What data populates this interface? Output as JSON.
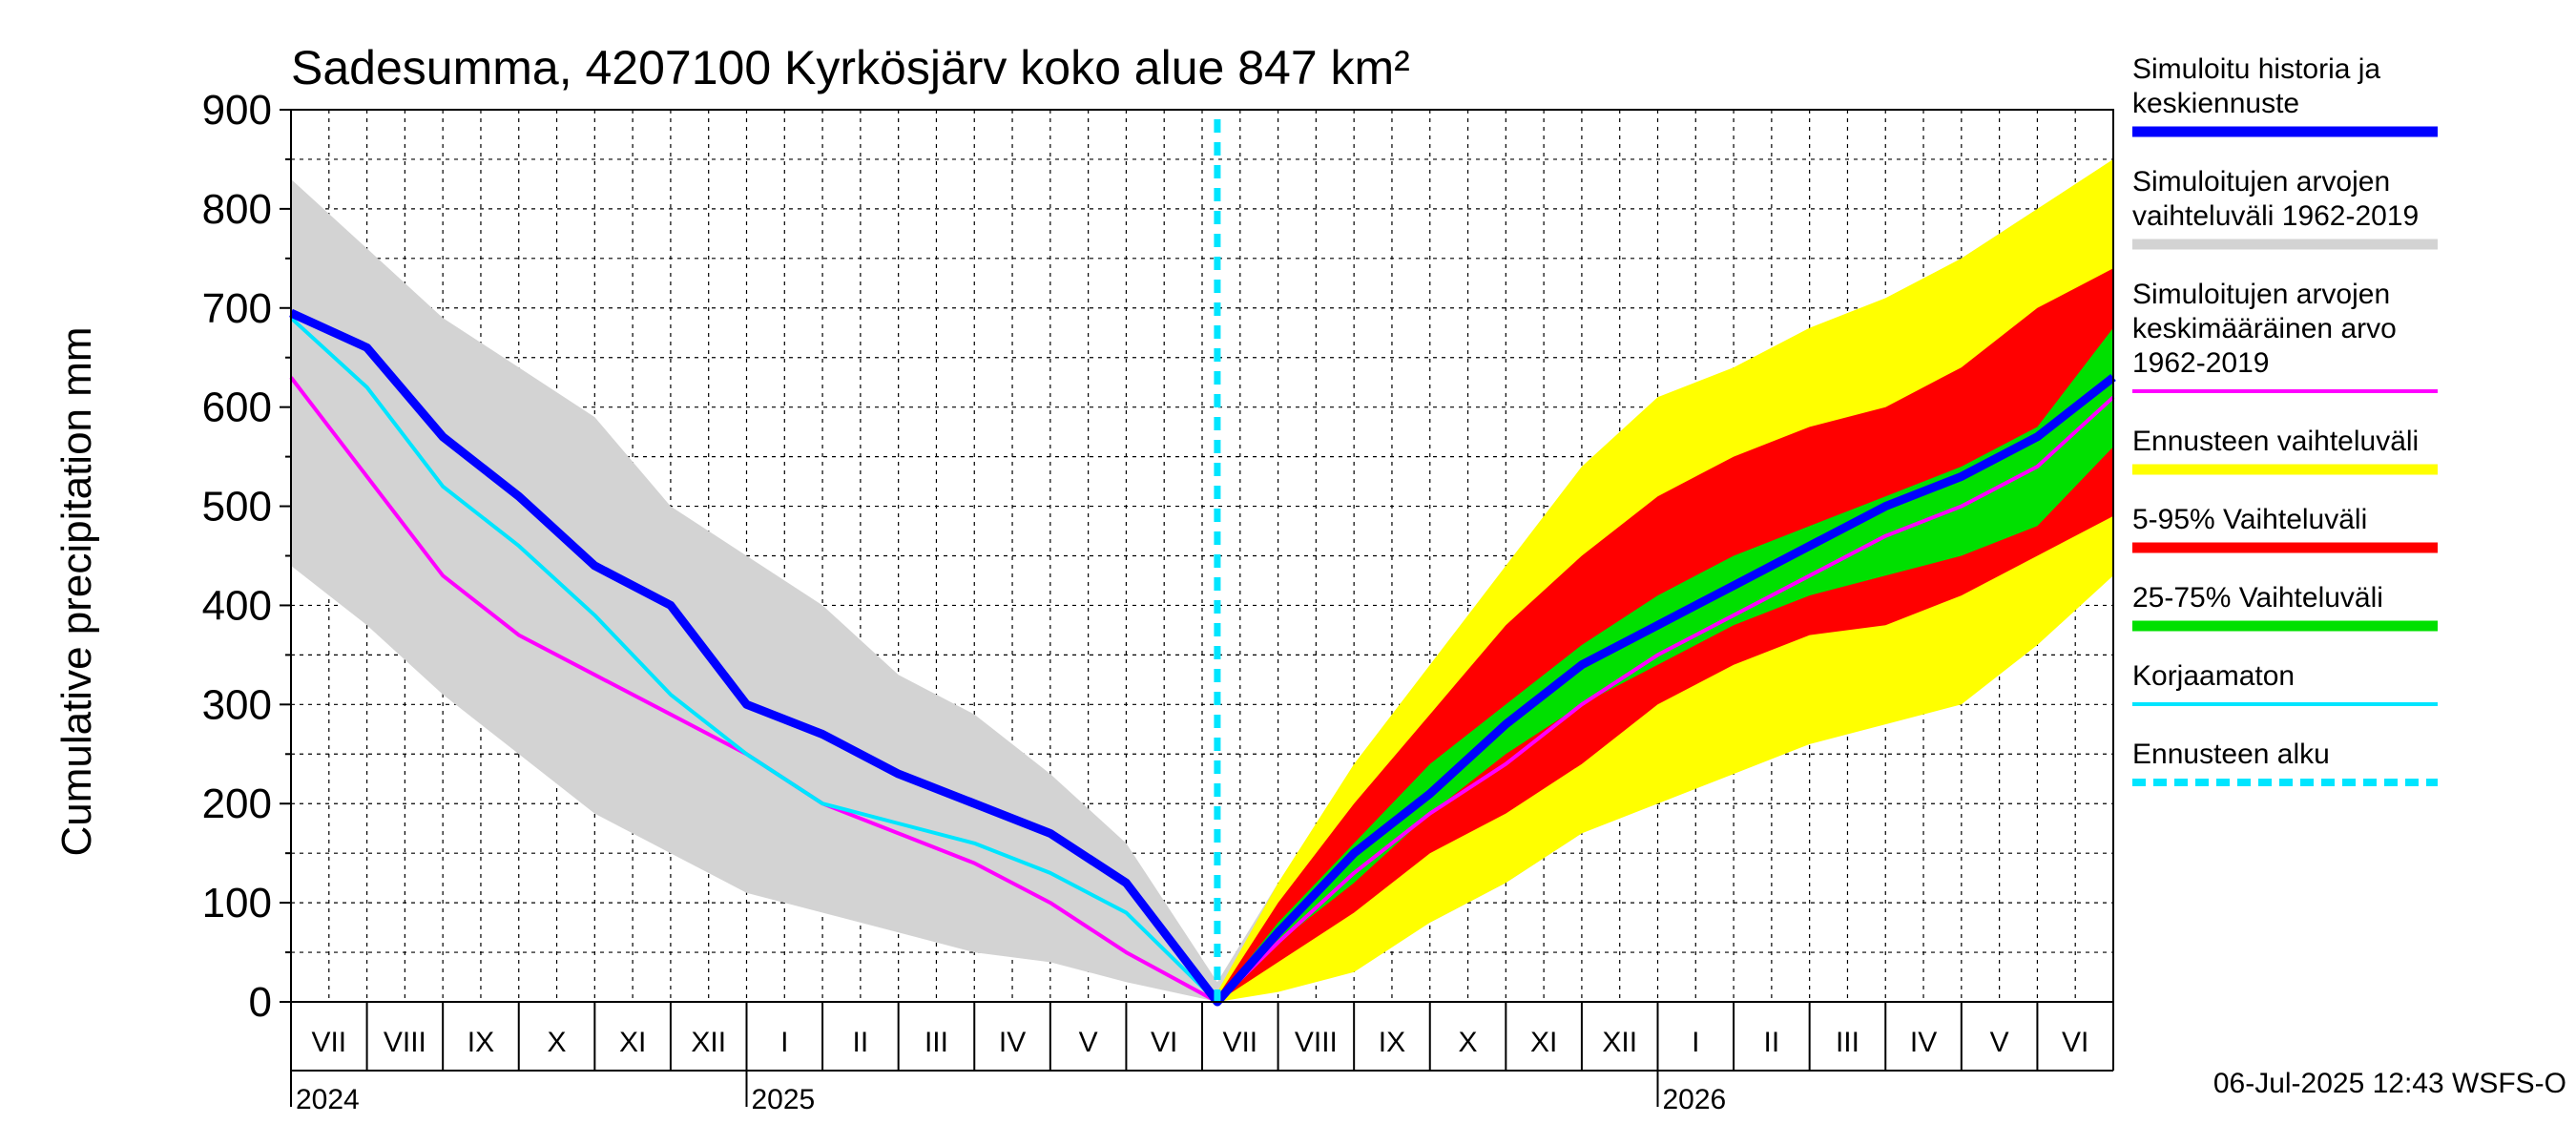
{
  "chart_data": {
    "type": "area",
    "title": "Sadesumma, 4207100 Kyrkösjärv koko alue 847 km²",
    "ylabel": "Cumulative precipitation   mm",
    "xlabel": "",
    "ylim": [
      0,
      900
    ],
    "yticks": [
      0,
      100,
      200,
      300,
      400,
      500,
      600,
      700,
      800,
      900
    ],
    "months": [
      "VII",
      "VIII",
      "IX",
      "X",
      "XI",
      "XII",
      "I",
      "II",
      "III",
      "IV",
      "V",
      "VI",
      "VII",
      "VIII",
      "IX",
      "X",
      "XI",
      "XII",
      "I",
      "II",
      "III",
      "IV",
      "V",
      "VI"
    ],
    "years": [
      {
        "label": "2024",
        "month_index": 0
      },
      {
        "label": "2025",
        "month_index": 6
      },
      {
        "label": "2026",
        "month_index": 18
      }
    ],
    "forecast_start_month": 12.2,
    "series": [
      {
        "name": "Simuloitujen arvojen vaihteluväli 1962-2019",
        "kind": "band",
        "color": "#d3d3d3",
        "x": [
          0,
          1,
          2,
          3,
          4,
          5,
          6,
          7,
          8,
          9,
          10,
          11,
          12.2,
          13,
          14,
          15,
          16,
          17,
          18,
          19,
          20,
          21,
          22,
          23,
          24
        ],
        "upper": [
          830,
          760,
          690,
          640,
          590,
          500,
          450,
          400,
          330,
          290,
          230,
          160,
          20,
          120,
          200,
          270,
          340,
          400,
          480,
          560,
          630,
          690,
          750,
          800,
          830
        ],
        "lower": [
          440,
          380,
          310,
          250,
          190,
          150,
          110,
          90,
          70,
          50,
          40,
          20,
          0,
          15,
          40,
          80,
          120,
          170,
          220,
          250,
          290,
          320,
          350,
          390,
          440
        ]
      },
      {
        "name": "Ennusteen vaihteluväli",
        "kind": "band",
        "color": "#ffff00",
        "x": [
          12.2,
          13,
          14,
          15,
          16,
          17,
          18,
          19,
          20,
          21,
          22,
          23,
          24
        ],
        "upper": [
          10,
          120,
          240,
          340,
          440,
          540,
          610,
          640,
          680,
          710,
          750,
          800,
          850
        ],
        "lower": [
          0,
          10,
          30,
          80,
          120,
          170,
          200,
          230,
          260,
          280,
          300,
          360,
          430
        ]
      },
      {
        "name": "5-95% Vaihteluväli",
        "kind": "band",
        "color": "#ff0000",
        "x": [
          12.2,
          13,
          14,
          15,
          16,
          17,
          18,
          19,
          20,
          21,
          22,
          23,
          24
        ],
        "upper": [
          5,
          100,
          200,
          290,
          380,
          450,
          510,
          550,
          580,
          600,
          640,
          700,
          740
        ],
        "lower": [
          0,
          40,
          90,
          150,
          190,
          240,
          300,
          340,
          370,
          380,
          410,
          450,
          490
        ]
      },
      {
        "name": "25-75% Vaihteluväli",
        "kind": "band",
        "color": "#00e000",
        "x": [
          12.2,
          13,
          14,
          15,
          16,
          17,
          18,
          19,
          20,
          21,
          22,
          23,
          24
        ],
        "upper": [
          3,
          80,
          160,
          240,
          300,
          360,
          410,
          450,
          480,
          510,
          540,
          580,
          680
        ],
        "lower": [
          0,
          60,
          120,
          190,
          250,
          300,
          340,
          380,
          410,
          430,
          450,
          480,
          560
        ]
      },
      {
        "name": "Simuloitujen arvojen keskimääräinen arvo 1962-2019",
        "kind": "line",
        "color": "#ff00ff",
        "x": [
          0,
          1,
          2,
          3,
          4,
          5,
          6,
          7,
          8,
          9,
          10,
          11,
          12.2,
          13,
          14,
          15,
          16,
          17,
          18,
          19,
          20,
          21,
          22,
          23,
          24
        ],
        "values": [
          630,
          530,
          430,
          370,
          330,
          290,
          250,
          200,
          170,
          140,
          100,
          50,
          0,
          60,
          130,
          190,
          240,
          300,
          350,
          390,
          430,
          470,
          500,
          540,
          610
        ]
      },
      {
        "name": "Korjaamaton",
        "kind": "line",
        "color": "#00e5ff",
        "x": [
          0,
          1,
          2,
          3,
          4,
          5,
          6,
          7,
          8,
          9,
          10,
          11,
          12.2
        ],
        "values": [
          690,
          620,
          520,
          460,
          390,
          310,
          250,
          200,
          180,
          160,
          130,
          90,
          0
        ]
      },
      {
        "name": "Simuloitu historia ja keskiennuste",
        "kind": "line",
        "color": "#0000ff",
        "x": [
          0,
          1,
          2,
          3,
          4,
          5,
          6,
          7,
          8,
          9,
          10,
          11,
          12.2,
          13,
          14,
          15,
          16,
          17,
          18,
          19,
          20,
          21,
          22,
          23,
          24
        ],
        "values": [
          695,
          660,
          570,
          510,
          440,
          400,
          300,
          270,
          230,
          200,
          170,
          120,
          0,
          70,
          150,
          210,
          280,
          340,
          380,
          420,
          460,
          500,
          530,
          570,
          630
        ]
      }
    ],
    "legend": [
      {
        "label_lines": [
          "Simuloitu historia ja",
          "keskiennuste"
        ],
        "color": "#0000ff",
        "style": "solid"
      },
      {
        "label_lines": [
          "Simuloitujen arvojen",
          "vaihteluväli 1962-2019"
        ],
        "color": "#d3d3d3",
        "style": "solid"
      },
      {
        "label_lines": [
          "Simuloitujen arvojen",
          "keskimääräinen arvo",
          "   1962-2019"
        ],
        "color": "#ff00ff",
        "style": "thin"
      },
      {
        "label_lines": [
          "Ennusteen vaihteluväli"
        ],
        "color": "#ffff00",
        "style": "solid"
      },
      {
        "label_lines": [
          "5-95% Vaihteluväli"
        ],
        "color": "#ff0000",
        "style": "solid"
      },
      {
        "label_lines": [
          "25-75% Vaihteluväli"
        ],
        "color": "#00e000",
        "style": "solid"
      },
      {
        "label_lines": [
          "Korjaamaton"
        ],
        "color": "#00e5ff",
        "style": "thin"
      },
      {
        "label_lines": [
          "Ennusteen alku"
        ],
        "color": "#00e5ff",
        "style": "dashed"
      }
    ]
  },
  "footer": "06-Jul-2025 12:43 WSFS-O"
}
